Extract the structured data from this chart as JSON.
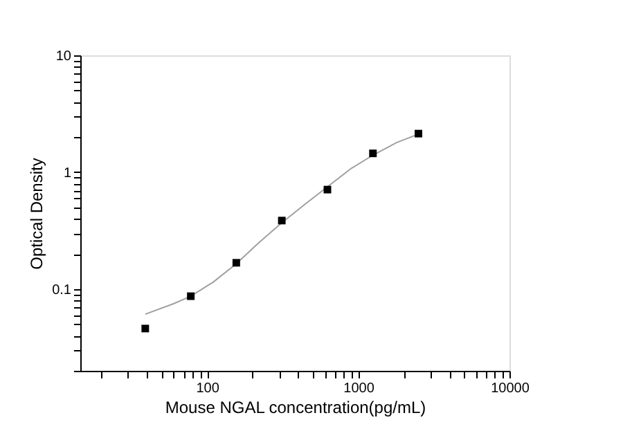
{
  "chart_data": {
    "type": "scatter",
    "xlabel": "Mouse NGAL concentration(pg/mL)",
    "ylabel": "Optical Density",
    "log": "xy",
    "grid": false,
    "marker": "square",
    "xlim": [
      14.5,
      10000
    ],
    "ylim": [
      0.02,
      10
    ],
    "xticks": [
      {
        "value": 20,
        "label": null
      },
      {
        "value": 30,
        "label": null
      },
      {
        "value": 40,
        "label": null
      },
      {
        "value": 50,
        "label": null
      },
      {
        "value": 60,
        "label": null
      },
      {
        "value": 70,
        "label": null
      },
      {
        "value": 80,
        "label": null
      },
      {
        "value": 90,
        "label": null
      },
      100,
      {
        "value": 200,
        "label": null
      },
      {
        "value": 300,
        "label": null
      },
      {
        "value": 400,
        "label": null
      },
      {
        "value": 500,
        "label": null
      },
      {
        "value": 600,
        "label": null
      },
      {
        "value": 700,
        "label": null
      },
      {
        "value": 800,
        "label": null
      },
      {
        "value": 900,
        "label": null
      },
      1000,
      {
        "value": 2000,
        "label": null
      },
      {
        "value": 3000,
        "label": null
      },
      {
        "value": 4000,
        "label": null
      },
      {
        "value": 5000,
        "label": null
      },
      {
        "value": 6000,
        "label": null
      },
      {
        "value": 7000,
        "label": null
      },
      {
        "value": 8000,
        "label": null
      },
      {
        "value": 9000,
        "label": null
      },
      10000
    ],
    "yticks": [
      {
        "value": 0.02,
        "label": null
      },
      {
        "value": 0.03,
        "label": null
      },
      {
        "value": 0.04,
        "label": null
      },
      {
        "value": 0.05,
        "label": null
      },
      {
        "value": 0.06,
        "label": null
      },
      {
        "value": 0.07,
        "label": null
      },
      {
        "value": 0.08,
        "label": null
      },
      {
        "value": 0.09,
        "label": null
      },
      0.1,
      {
        "value": 0.2,
        "label": null
      },
      {
        "value": 0.3,
        "label": null
      },
      {
        "value": 0.4,
        "label": null
      },
      {
        "value": 0.5,
        "label": null
      },
      {
        "value": 0.6,
        "label": null
      },
      {
        "value": 0.7,
        "label": null
      },
      {
        "value": 0.8,
        "label": null
      },
      {
        "value": 0.9,
        "label": null
      },
      1,
      {
        "value": 2,
        "label": null
      },
      {
        "value": 3,
        "label": null
      },
      {
        "value": 4,
        "label": null
      },
      {
        "value": 5,
        "label": null
      },
      {
        "value": 6,
        "label": null
      },
      {
        "value": 7,
        "label": null
      },
      {
        "value": 8,
        "label": null
      },
      {
        "value": 9,
        "label": null
      },
      10
    ],
    "series": [
      {
        "type": "line",
        "color": "#a0a0a0",
        "marker": "none",
        "line_style": "solid",
        "x": [
          39,
          60,
          78,
          110,
          156,
          220,
          312,
          450,
          625,
          900,
          1250,
          1800,
          2500
        ],
        "values": [
          0.061,
          0.075,
          0.087,
          0.115,
          0.165,
          0.25,
          0.37,
          0.54,
          0.75,
          1.08,
          1.4,
          1.8,
          2.12
        ]
      },
      {
        "color": "#000000",
        "x": [
          39,
          78,
          156,
          312,
          625,
          1250,
          2500
        ],
        "values": [
          0.046,
          0.087,
          0.168,
          0.386,
          0.71,
          1.45,
          2.14
        ]
      }
    ]
  }
}
